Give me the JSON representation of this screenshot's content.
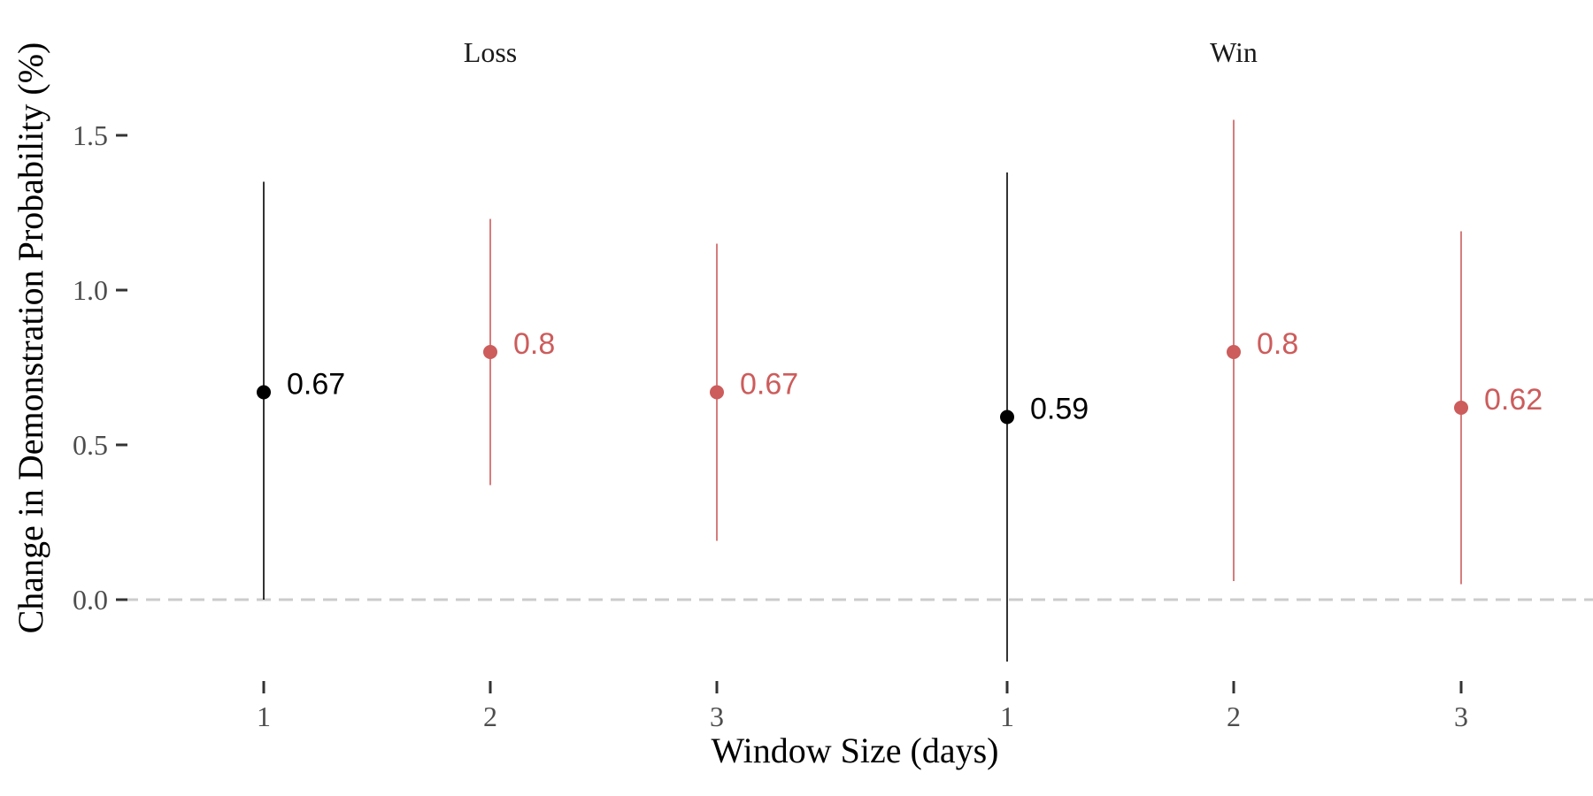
{
  "chart_data": {
    "type": "scatter",
    "subtype": "point-range",
    "xlabel": "Window Size (days)",
    "ylabel": "Change in Demonstration Probability (%)",
    "ylim": [
      -0.22,
      1.62
    ],
    "yticks": [
      0.0,
      0.5,
      1.0,
      1.5
    ],
    "ytick_labels": [
      "0.0",
      "0.5",
      "1.0",
      "1.5"
    ],
    "reference_line": {
      "y": 0,
      "style": "dashed",
      "color": "#cccccc"
    },
    "grid": false,
    "legend": "none",
    "colors": {
      "window_1": "#000000",
      "window_2_3": "#cd5c5c"
    },
    "panels": [
      {
        "title": "Loss",
        "categories": [
          "1",
          "2",
          "3"
        ],
        "points": [
          {
            "x": "1",
            "estimate": 0.67,
            "lower": 0.0,
            "upper": 1.35,
            "label": "0.67",
            "color": "#000000"
          },
          {
            "x": "2",
            "estimate": 0.8,
            "lower": 0.37,
            "upper": 1.23,
            "label": "0.8",
            "color": "#cd5c5c"
          },
          {
            "x": "3",
            "estimate": 0.67,
            "lower": 0.19,
            "upper": 1.15,
            "label": "0.67",
            "color": "#cd5c5c"
          }
        ]
      },
      {
        "title": "Win",
        "categories": [
          "1",
          "2",
          "3"
        ],
        "points": [
          {
            "x": "1",
            "estimate": 0.59,
            "lower": -0.2,
            "upper": 1.38,
            "label": "0.59",
            "color": "#000000"
          },
          {
            "x": "2",
            "estimate": 0.8,
            "lower": 0.06,
            "upper": 1.55,
            "label": "0.8",
            "color": "#cd5c5c"
          },
          {
            "x": "3",
            "estimate": 0.62,
            "lower": 0.05,
            "upper": 1.19,
            "label": "0.62",
            "color": "#cd5c5c"
          }
        ]
      }
    ]
  }
}
